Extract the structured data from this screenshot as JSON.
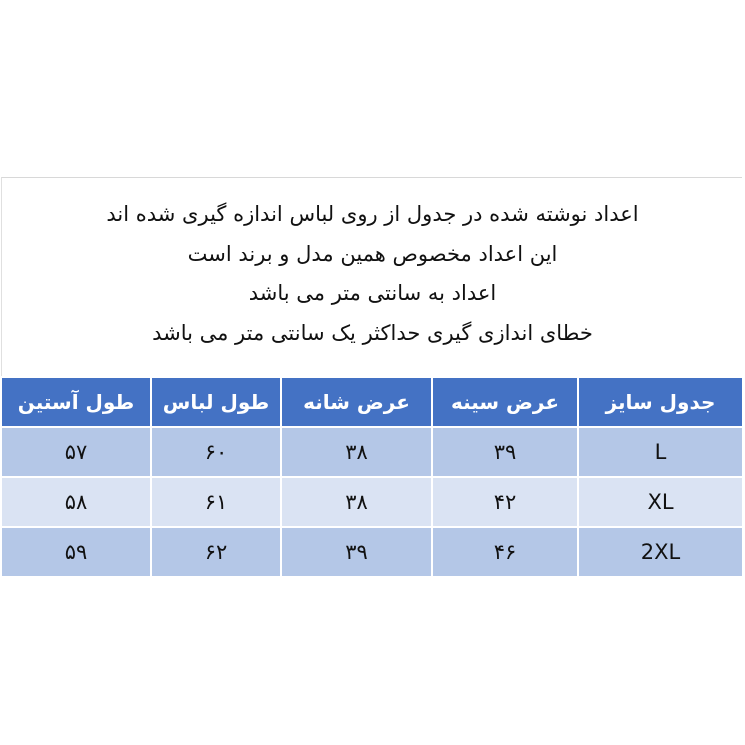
{
  "notes": [
    "اعداد نوشته شده در جدول از روی لباس اندازه گیری شده اند",
    "این اعداد مخصوص همین مدل و برند است",
    "اعداد به سانتی متر می باشد",
    "خطای اندازی گیری حداکثر یک سانتی متر می باشد"
  ],
  "colors": {
    "header": "#4472C4",
    "row_odd": "#B4C7E7",
    "row_even": "#DAE3F3"
  },
  "table": {
    "headers": [
      "جدول سایز",
      "عرض سینه",
      "عرض شانه",
      "طول لباس",
      "طول آستین"
    ],
    "rows": [
      [
        "L",
        "۳۹",
        "۳۸",
        "۶۰",
        "۵۷"
      ],
      [
        "XL",
        "۴۲",
        "۳۸",
        "۶۱",
        "۵۸"
      ],
      [
        "2XL",
        "۴۶",
        "۳۹",
        "۶۲",
        "۵۹"
      ]
    ]
  }
}
